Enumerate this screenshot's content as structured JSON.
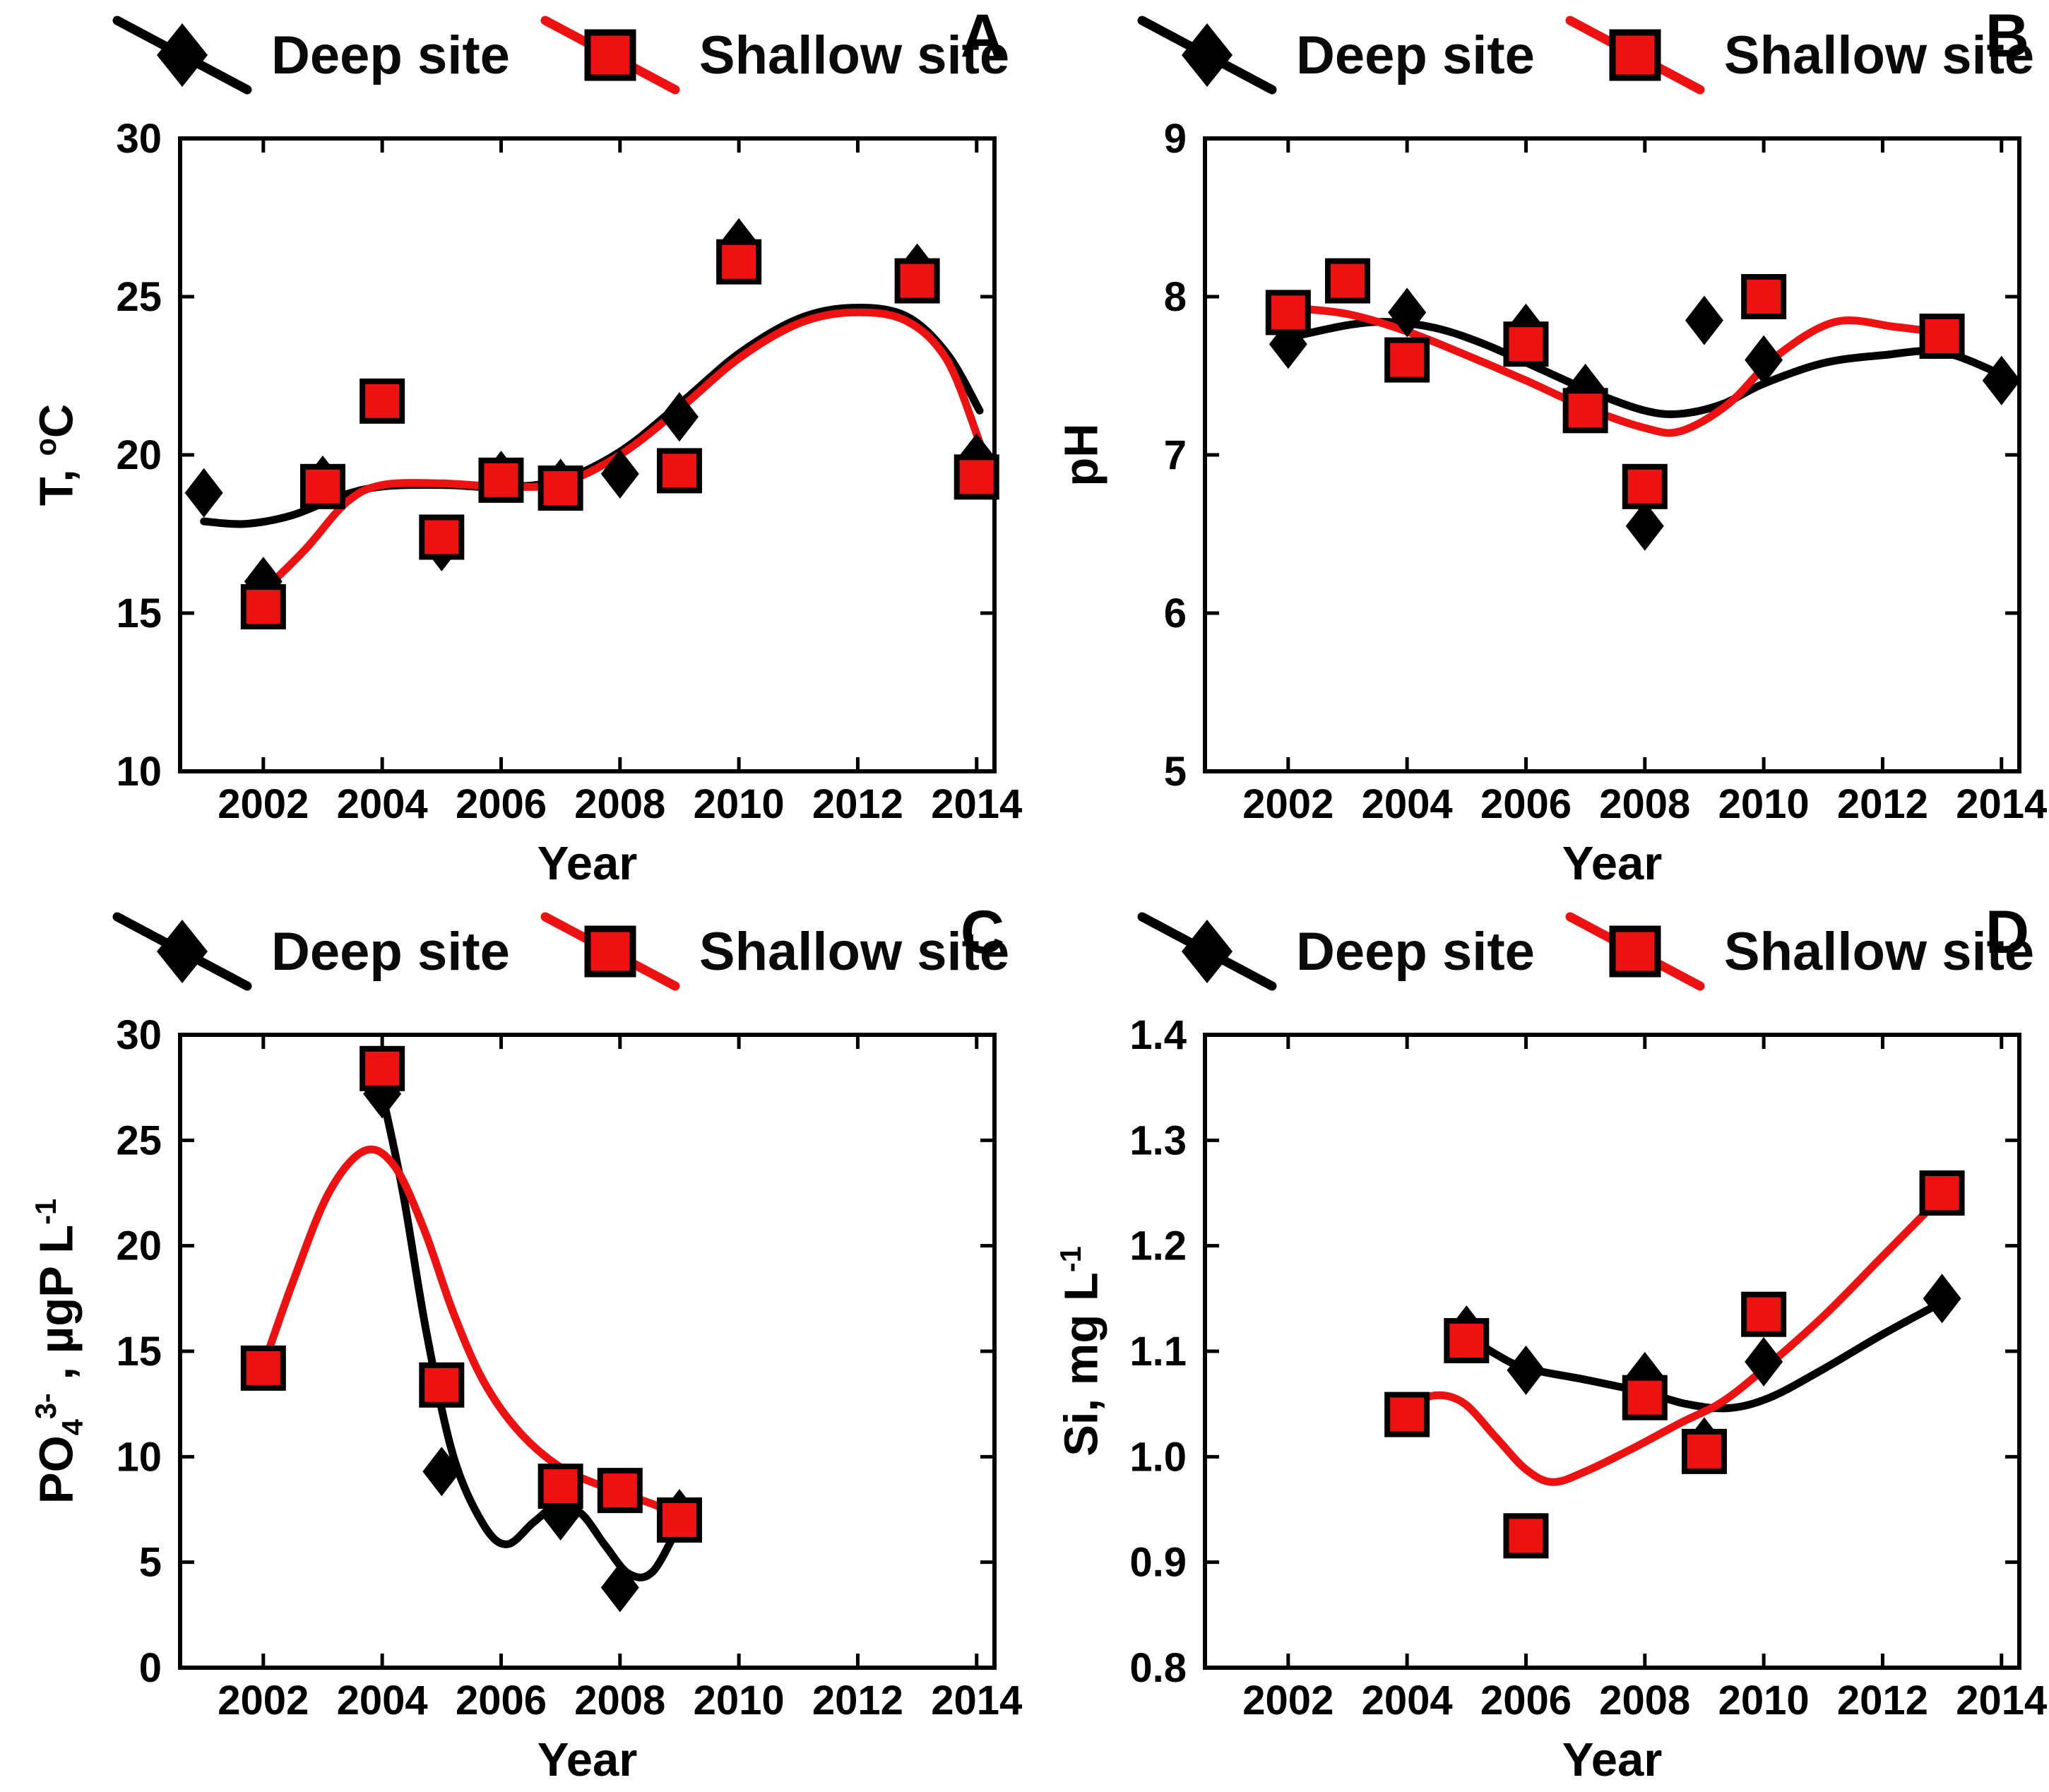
{
  "background_color": "#ffffff",
  "colors": {
    "deep": "#000000",
    "shallow": "#ee1111",
    "marker_outline": "#000000"
  },
  "legend": {
    "deep_label": "Deep site",
    "shallow_label": "Shallow site",
    "position": "top"
  },
  "chart_data": [
    {
      "id": "A",
      "panel_label": "A",
      "type": "scatter",
      "xlabel": "Year",
      "ylabel": "T, °C",
      "ylabel_parts": [
        {
          "t": "T, "
        },
        {
          "t": "o",
          "sup": true
        },
        {
          "t": "C"
        }
      ],
      "xlim": [
        2000.6,
        2014.3
      ],
      "ylim": [
        10,
        30
      ],
      "xticks": [
        2002,
        2004,
        2006,
        2008,
        2010,
        2012,
        2014
      ],
      "xtick_labels": [
        "2002",
        "2004",
        "2006",
        "2008",
        "2010",
        "2012",
        "2014"
      ],
      "yticks": [
        10,
        15,
        20,
        25,
        30
      ],
      "ytick_labels": [
        "10",
        "15",
        "20",
        "25",
        "30"
      ],
      "grid": false,
      "series": [
        {
          "name": "Deep site",
          "marker": "diamond",
          "color": "#000000",
          "points": [
            [
              2001,
              18.8
            ],
            [
              2002,
              16.0
            ],
            [
              2003,
              19.2
            ],
            [
              2005,
              17.1
            ],
            [
              2006,
              19.35
            ],
            [
              2007,
              19.1
            ],
            [
              2008,
              19.4
            ],
            [
              2009,
              21.2
            ],
            [
              2010,
              26.7
            ],
            [
              2013,
              25.9
            ],
            [
              2014,
              19.9
            ]
          ],
          "trend": [
            [
              2001,
              17.9
            ],
            [
              2001.7,
              17.82
            ],
            [
              2002.5,
              18.1
            ],
            [
              2003.3,
              18.7
            ],
            [
              2004,
              19.0
            ],
            [
              2005,
              19.05
            ],
            [
              2006,
              18.98
            ],
            [
              2007,
              19.2
            ],
            [
              2008,
              20.1
            ],
            [
              2009,
              21.6
            ],
            [
              2010,
              23.2
            ],
            [
              2011,
              24.3
            ],
            [
              2011.9,
              24.65
            ],
            [
              2012.8,
              24.4
            ],
            [
              2013.5,
              23.2
            ],
            [
              2014.05,
              21.4
            ]
          ]
        },
        {
          "name": "Shallow site",
          "marker": "square",
          "color": "#ee1111",
          "points": [
            [
              2002,
              15.2
            ],
            [
              2003,
              19.0
            ],
            [
              2004,
              21.7
            ],
            [
              2005,
              17.4
            ],
            [
              2006,
              19.2
            ],
            [
              2007,
              18.95
            ],
            [
              2009,
              19.5
            ],
            [
              2010,
              26.1
            ],
            [
              2013,
              25.5
            ],
            [
              2014,
              19.3
            ]
          ],
          "trend": [
            [
              2002,
              15.7
            ],
            [
              2002.7,
              17.0
            ],
            [
              2003.4,
              18.5
            ],
            [
              2004,
              19.05
            ],
            [
              2005,
              19.1
            ],
            [
              2006,
              19.0
            ],
            [
              2007,
              19.1
            ],
            [
              2008,
              20.0
            ],
            [
              2009,
              21.45
            ],
            [
              2010,
              23.05
            ],
            [
              2011,
              24.15
            ],
            [
              2011.9,
              24.5
            ],
            [
              2012.8,
              24.25
            ],
            [
              2013.5,
              23.0
            ],
            [
              2014.05,
              20.4
            ]
          ]
        }
      ]
    },
    {
      "id": "B",
      "panel_label": "B",
      "type": "scatter",
      "xlabel": "Year",
      "ylabel": "pH",
      "ylabel_parts": [
        {
          "t": "pH"
        }
      ],
      "xlim": [
        2000.6,
        2014.3
      ],
      "ylim": [
        5,
        9
      ],
      "xticks": [
        2002,
        2004,
        2006,
        2008,
        2010,
        2012,
        2014
      ],
      "xtick_labels": [
        "2002",
        "2004",
        "2006",
        "2008",
        "2010",
        "2012",
        "2014"
      ],
      "yticks": [
        5,
        6,
        7,
        8,
        9
      ],
      "ytick_labels": [
        "5",
        "6",
        "7",
        "8",
        "9"
      ],
      "grid": false,
      "series": [
        {
          "name": "Deep site",
          "marker": "diamond",
          "color": "#000000",
          "points": [
            [
              2002,
              7.7
            ],
            [
              2004,
              7.9
            ],
            [
              2006,
              7.8
            ],
            [
              2007,
              7.42
            ],
            [
              2008,
              6.55
            ],
            [
              2009,
              7.85
            ],
            [
              2010,
              7.6
            ],
            [
              2014,
              7.47
            ]
          ],
          "trend": [
            [
              2002,
              7.74
            ],
            [
              2003,
              7.82
            ],
            [
              2003.7,
              7.84
            ],
            [
              2004.5,
              7.8
            ],
            [
              2005.3,
              7.7
            ],
            [
              2006.2,
              7.55
            ],
            [
              2007.1,
              7.4
            ],
            [
              2008,
              7.28
            ],
            [
              2008.6,
              7.26
            ],
            [
              2009.3,
              7.32
            ],
            [
              2010,
              7.45
            ],
            [
              2011,
              7.58
            ],
            [
              2012,
              7.63
            ],
            [
              2013,
              7.65
            ],
            [
              2014.05,
              7.5
            ]
          ]
        },
        {
          "name": "Shallow site",
          "marker": "square",
          "color": "#ee1111",
          "points": [
            [
              2002,
              7.9
            ],
            [
              2003,
              8.1
            ],
            [
              2004,
              7.6
            ],
            [
              2006,
              7.7
            ],
            [
              2007,
              7.28
            ],
            [
              2008,
              6.8
            ],
            [
              2010,
              8.0
            ],
            [
              2013,
              7.75
            ]
          ],
          "trend": [
            [
              2002,
              7.93
            ],
            [
              2003,
              7.89
            ],
            [
              2004,
              7.78
            ],
            [
              2005,
              7.63
            ],
            [
              2006,
              7.47
            ],
            [
              2007,
              7.3
            ],
            [
              2008,
              7.17
            ],
            [
              2008.6,
              7.15
            ],
            [
              2009.4,
              7.32
            ],
            [
              2010.2,
              7.62
            ],
            [
              2011.2,
              7.84
            ],
            [
              2012.2,
              7.81
            ],
            [
              2013,
              7.77
            ],
            [
              2013.3,
              7.75
            ]
          ]
        }
      ]
    },
    {
      "id": "C",
      "panel_label": "C",
      "type": "scatter",
      "xlabel": "Year",
      "ylabel": "PO₄³⁻, µgP L⁻¹",
      "ylabel_parts": [
        {
          "t": "PO"
        },
        {
          "t": "4",
          "sub": true
        },
        {
          "t": "3-",
          "sup": true
        },
        {
          "t": " , µgP L"
        },
        {
          "t": "-1",
          "sup": true
        }
      ],
      "xlim": [
        2000.6,
        2014.3
      ],
      "ylim": [
        0,
        30
      ],
      "xticks": [
        2002,
        2004,
        2006,
        2008,
        2010,
        2012,
        2014
      ],
      "xtick_labels": [
        "2002",
        "2004",
        "2006",
        "2008",
        "2010",
        "2012",
        "2014"
      ],
      "yticks": [
        0,
        5,
        10,
        15,
        20,
        25,
        30
      ],
      "ytick_labels": [
        "0",
        "5",
        "10",
        "15",
        "20",
        "25",
        "30"
      ],
      "grid": false,
      "series": [
        {
          "name": "Deep site",
          "marker": "diamond",
          "color": "#000000",
          "points": [
            [
              2004,
              27.2
            ],
            [
              2005,
              9.3
            ],
            [
              2007,
              7.2
            ],
            [
              2008,
              3.8
            ],
            [
              2009,
              7.3
            ]
          ],
          "trend": [
            [
              2004,
              27.2
            ],
            [
              2004.35,
              22.5
            ],
            [
              2004.75,
              15.8
            ],
            [
              2005.2,
              10.0
            ],
            [
              2005.7,
              6.8
            ],
            [
              2006.1,
              5.85
            ],
            [
              2006.55,
              6.9
            ],
            [
              2006.95,
              7.7
            ],
            [
              2007.35,
              7.3
            ],
            [
              2007.75,
              5.8
            ],
            [
              2008.15,
              4.45
            ],
            [
              2008.55,
              4.55
            ],
            [
              2009,
              6.8
            ]
          ]
        },
        {
          "name": "Shallow site",
          "marker": "square",
          "color": "#ee1111",
          "points": [
            [
              2002,
              14.2
            ],
            [
              2004,
              28.4
            ],
            [
              2005,
              13.4
            ],
            [
              2007,
              8.6
            ],
            [
              2008,
              8.4
            ],
            [
              2009,
              7.0
            ]
          ],
          "trend": [
            [
              2002,
              14.3
            ],
            [
              2002.5,
              18.3
            ],
            [
              2003.1,
              22.5
            ],
            [
              2003.7,
              24.5
            ],
            [
              2004.2,
              23.8
            ],
            [
              2004.7,
              20.8
            ],
            [
              2005.2,
              16.8
            ],
            [
              2005.7,
              13.6
            ],
            [
              2006.3,
              11.2
            ],
            [
              2007,
              9.5
            ],
            [
              2007.8,
              8.5
            ],
            [
              2008.6,
              7.7
            ],
            [
              2009.1,
              7.0
            ]
          ]
        }
      ]
    },
    {
      "id": "D",
      "panel_label": "D",
      "type": "scatter",
      "xlabel": "Year",
      "ylabel": "Si, mg L⁻¹",
      "ylabel_parts": [
        {
          "t": "Si, mg L"
        },
        {
          "t": "-1",
          "sup": true
        }
      ],
      "xlim": [
        2000.6,
        2014.3
      ],
      "ylim": [
        0.8,
        1.4
      ],
      "xticks": [
        2002,
        2004,
        2006,
        2008,
        2010,
        2012,
        2014
      ],
      "xtick_labels": [
        "2002",
        "2004",
        "2006",
        "2008",
        "2010",
        "2012",
        "2014"
      ],
      "yticks": [
        0.8,
        0.9,
        1.0,
        1.1,
        1.2,
        1.3,
        1.4
      ],
      "ytick_labels": [
        "0.8",
        "0.9",
        "1.0",
        "1.1",
        "1.2",
        "1.3",
        "1.4"
      ],
      "grid": false,
      "series": [
        {
          "name": "Deep site",
          "marker": "diamond",
          "color": "#000000",
          "points": [
            [
              2005,
              1.12
            ],
            [
              2006,
              1.082
            ],
            [
              2008,
              1.076
            ],
            [
              2009,
              1.014
            ],
            [
              2010,
              1.09
            ],
            [
              2013,
              1.15
            ]
          ],
          "trend": [
            [
              2004.95,
              1.117
            ],
            [
              2005.5,
              1.097
            ],
            [
              2006,
              1.084
            ],
            [
              2007,
              1.073
            ],
            [
              2008,
              1.061
            ],
            [
              2008.7,
              1.05
            ],
            [
              2009.4,
              1.046
            ],
            [
              2010.1,
              1.056
            ],
            [
              2011,
              1.083
            ],
            [
              2012,
              1.116
            ],
            [
              2013.05,
              1.148
            ]
          ]
        },
        {
          "name": "Shallow site",
          "marker": "square",
          "color": "#ee1111",
          "points": [
            [
              2004,
              1.04
            ],
            [
              2005,
              1.11
            ],
            [
              2006,
              0.925
            ],
            [
              2008,
              1.056
            ],
            [
              2009,
              1.005
            ],
            [
              2010,
              1.135
            ],
            [
              2013,
              1.25
            ]
          ],
          "trend": [
            [
              2004,
              1.045
            ],
            [
              2004.45,
              1.058
            ],
            [
              2004.95,
              1.051
            ],
            [
              2005.5,
              1.018
            ],
            [
              2006,
              0.988
            ],
            [
              2006.45,
              0.976
            ],
            [
              2007,
              0.986
            ],
            [
              2007.8,
              1.008
            ],
            [
              2008.6,
              1.032
            ],
            [
              2009.3,
              1.052
            ],
            [
              2010,
              1.083
            ],
            [
              2011,
              1.133
            ],
            [
              2012,
              1.19
            ],
            [
              2013.05,
              1.25
            ]
          ]
        }
      ]
    }
  ]
}
